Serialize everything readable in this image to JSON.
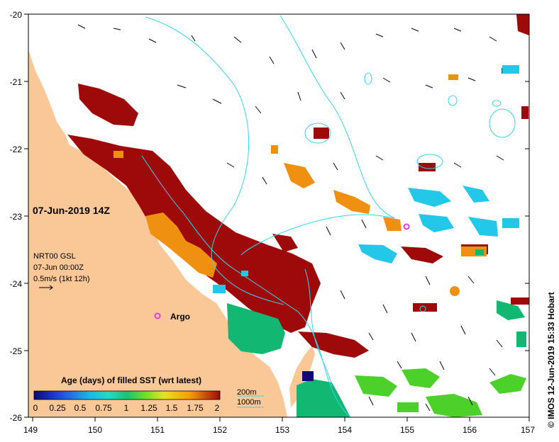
{
  "map": {
    "title_date": "07-Jun-2019 14Z",
    "nrt_label": "NRT00 GSL",
    "nrt_time": "07-Jun 00:00Z",
    "current_scale": "0.5m/s (1kt 12h)",
    "argo_label": "Argo",
    "credit": "© IMOS 12-Jun-2019 15:33 Hobart",
    "contours": [
      "200m",
      "1000m"
    ],
    "lon_ticks": [
      "149",
      "150",
      "151",
      "152",
      "153",
      "154",
      "155",
      "156",
      "157"
    ],
    "lat_ticks": [
      "-20",
      "-21",
      "-22",
      "-23",
      "-24",
      "-25",
      "-26"
    ],
    "colors": {
      "land": "#f9c896",
      "ocean": "#ffffff",
      "contour": "#33d6ee",
      "argo": "#e040e0"
    }
  },
  "legend": {
    "title": "Age (days) of filled SST (wrt latest)",
    "ticks": [
      "0",
      "0.25",
      "0.5",
      "0.75",
      "1",
      "1.25",
      "1.5",
      "1.75",
      "2"
    ],
    "stops": [
      "#0a0a7a",
      "#1f3fd0",
      "#23b4e8",
      "#2bd6c4",
      "#22c070",
      "#6de02a",
      "#e7e222",
      "#f59a10",
      "#9e0a0a"
    ]
  }
}
